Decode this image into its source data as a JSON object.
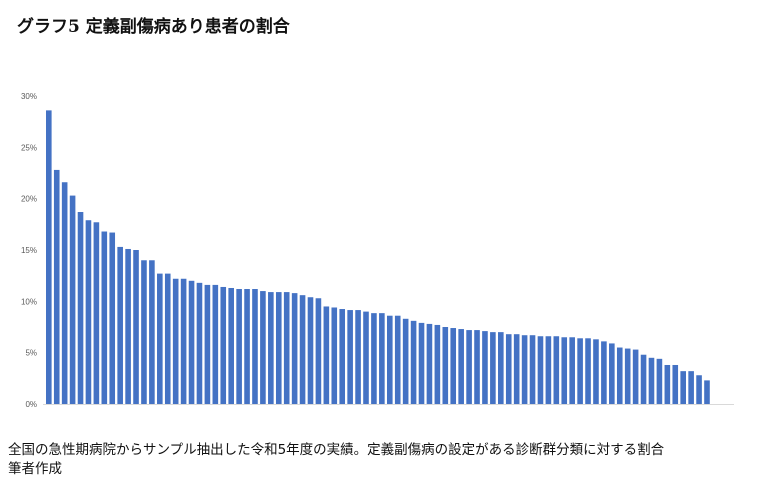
{
  "title": "グラフ5  定義副傷病あり患者の割合",
  "caption": {
    "line1": "全国の急性期病院からサンプル抽出した令和5年度の実績。定義副傷病の設定がある診断群分類に対する割合",
    "line2": "筆者作成"
  },
  "chart_data": {
    "type": "bar",
    "title": "グラフ5  定義副傷病あり患者の割合",
    "xlabel": "",
    "ylabel": "",
    "ylim": [
      0,
      30
    ],
    "yticks": [
      0,
      5,
      10,
      15,
      20,
      25,
      30
    ],
    "ytick_labels": [
      "0%",
      "5%",
      "10%",
      "15%",
      "20%",
      "25%",
      "30%"
    ],
    "grid": false,
    "legend": "none",
    "color": "#4472C4",
    "unit": "%",
    "values": [
      28.6,
      22.8,
      21.6,
      20.3,
      18.7,
      17.9,
      17.7,
      16.8,
      16.7,
      15.3,
      15.1,
      15.0,
      14.0,
      14.0,
      12.7,
      12.7,
      12.2,
      12.2,
      12.0,
      11.8,
      11.6,
      11.6,
      11.4,
      11.3,
      11.2,
      11.2,
      11.2,
      11.0,
      10.9,
      10.9,
      10.9,
      10.8,
      10.6,
      10.4,
      10.3,
      9.5,
      9.4,
      9.25,
      9.15,
      9.15,
      9.0,
      8.85,
      8.85,
      8.6,
      8.6,
      8.3,
      8.1,
      7.9,
      7.8,
      7.7,
      7.5,
      7.4,
      7.3,
      7.2,
      7.2,
      7.1,
      7.0,
      7.0,
      6.8,
      6.8,
      6.7,
      6.7,
      6.6,
      6.6,
      6.6,
      6.5,
      6.5,
      6.4,
      6.4,
      6.3,
      6.1,
      5.9,
      5.5,
      5.4,
      5.3,
      4.8,
      4.5,
      4.4,
      3.8,
      3.8,
      3.2,
      3.2,
      2.8,
      2.3
    ]
  }
}
